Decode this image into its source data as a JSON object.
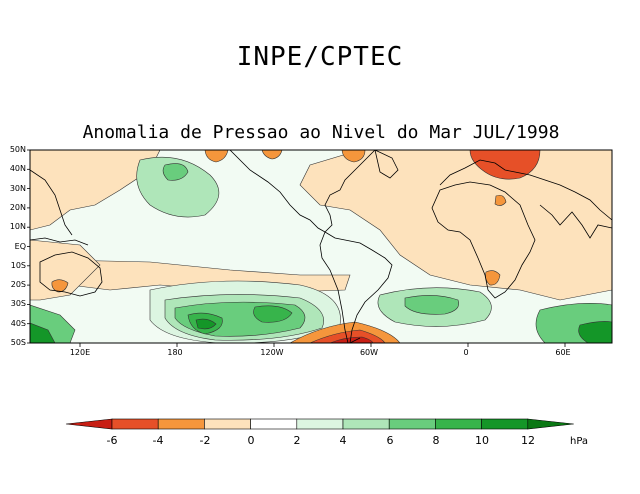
{
  "header": {
    "org": "INPE/CPTEC",
    "title": "Anomalia de Pressao ao Nivel do Mar JUL/1998"
  },
  "map": {
    "lat_labels": [
      "50N",
      "40N",
      "30N",
      "20N",
      "10N",
      "EQ",
      "10S",
      "20S",
      "30S",
      "40S",
      "50S"
    ],
    "lon_labels": [
      "120E",
      "180",
      "120W",
      "60W",
      "0",
      "60E"
    ]
  },
  "colorbar": {
    "labels": [
      "-6",
      "-4",
      "-2",
      "0",
      "2",
      "4",
      "6",
      "8",
      "10",
      "12"
    ],
    "unit": "hPa",
    "colors": [
      "#c81e14",
      "#e65028",
      "#f5963c",
      "#fde2bc",
      "#ffffff",
      "#dcf5e1",
      "#afe6b9",
      "#69cd7d",
      "#37b44b",
      "#149628",
      "#0a7814"
    ]
  },
  "palette": {
    "pos_light": "#dcf5e1",
    "pos_med": "#afe6b9",
    "pos_strong": "#69cd7d",
    "neg_light": "#fde2bc",
    "neg_med": "#f5963c",
    "neg_strong": "#e65028",
    "land": "#ffffff",
    "coast": "#000000"
  }
}
